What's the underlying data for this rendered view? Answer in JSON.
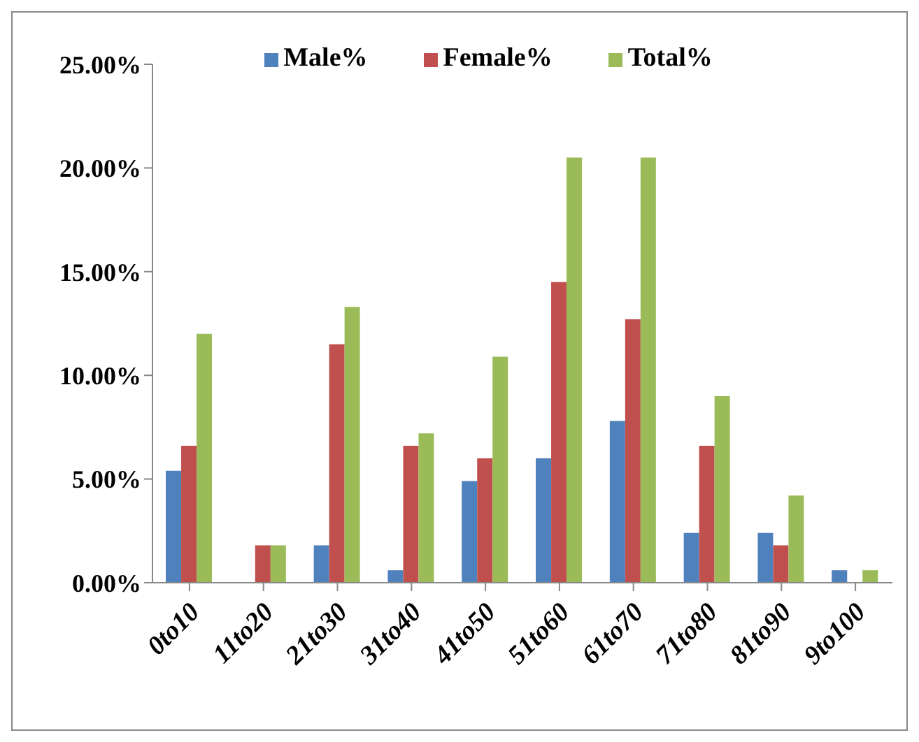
{
  "chart_data": {
    "type": "bar",
    "categories": [
      "0to10",
      "11to20",
      "21to30",
      "31to40",
      "41to50",
      "51to60",
      "61to70",
      "71to80",
      "81to90",
      "9to100"
    ],
    "series": [
      {
        "name": "Male%",
        "color": "#4f81bd",
        "values": [
          5.4,
          0,
          1.8,
          0.6,
          4.9,
          6.0,
          7.8,
          2.4,
          2.4,
          0.6
        ]
      },
      {
        "name": "Female%",
        "color": "#c0504d",
        "values": [
          6.6,
          1.8,
          11.5,
          6.6,
          6.0,
          14.5,
          12.7,
          6.6,
          1.8,
          0
        ]
      },
      {
        "name": "Total%",
        "color": "#9bbb59",
        "values": [
          12.0,
          1.8,
          13.3,
          7.2,
          10.9,
          20.5,
          20.5,
          9.0,
          4.2,
          0.6
        ]
      }
    ],
    "ylim": [
      0,
      25
    ],
    "yticks": [
      {
        "value": 0,
        "label": "0.00%"
      },
      {
        "value": 5,
        "label": "5.00%"
      },
      {
        "value": 10,
        "label": "10.00%"
      },
      {
        "value": 15,
        "label": "15.00%"
      },
      {
        "value": 20,
        "label": "20.00%"
      },
      {
        "value": 25,
        "label": "25.00%"
      }
    ],
    "legend": "top",
    "grid": false
  }
}
